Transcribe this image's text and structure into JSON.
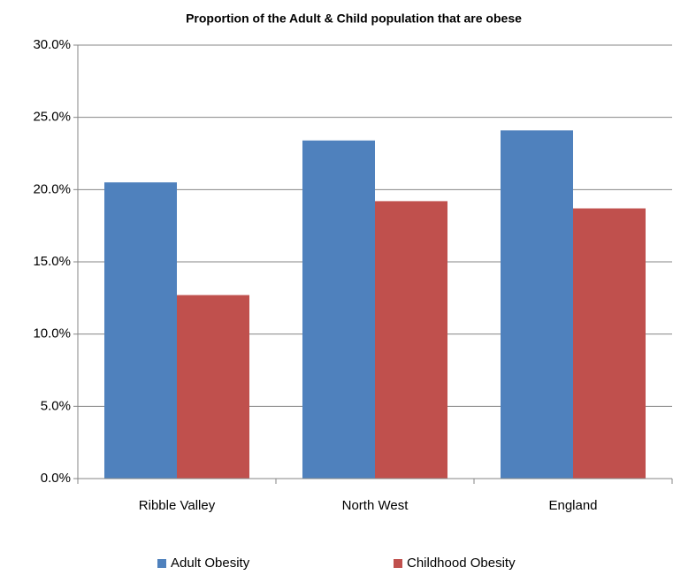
{
  "chart_data": {
    "type": "bar",
    "title": "Proportion  of the Adult & Child population  that are obese",
    "categories": [
      "Ribble Valley",
      "North West",
      "England"
    ],
    "series": [
      {
        "name": "Adult Obesity",
        "color": "#4f81bd",
        "values": [
          20.5,
          23.4,
          24.1
        ]
      },
      {
        "name": "Childhood Obesity",
        "color": "#c0504d",
        "values": [
          12.7,
          19.2,
          18.7
        ]
      }
    ],
    "ylim": [
      0,
      30
    ],
    "yticks": [
      {
        "value": 0,
        "label": "0.0%"
      },
      {
        "value": 5,
        "label": "5.0%"
      },
      {
        "value": 10,
        "label": "10.0%"
      },
      {
        "value": 15,
        "label": "15.0%"
      },
      {
        "value": 20,
        "label": "20.0%"
      },
      {
        "value": 25,
        "label": "25.0%"
      },
      {
        "value": 30,
        "label": "30.0%"
      }
    ],
    "grid": true,
    "legend": "bottom"
  }
}
